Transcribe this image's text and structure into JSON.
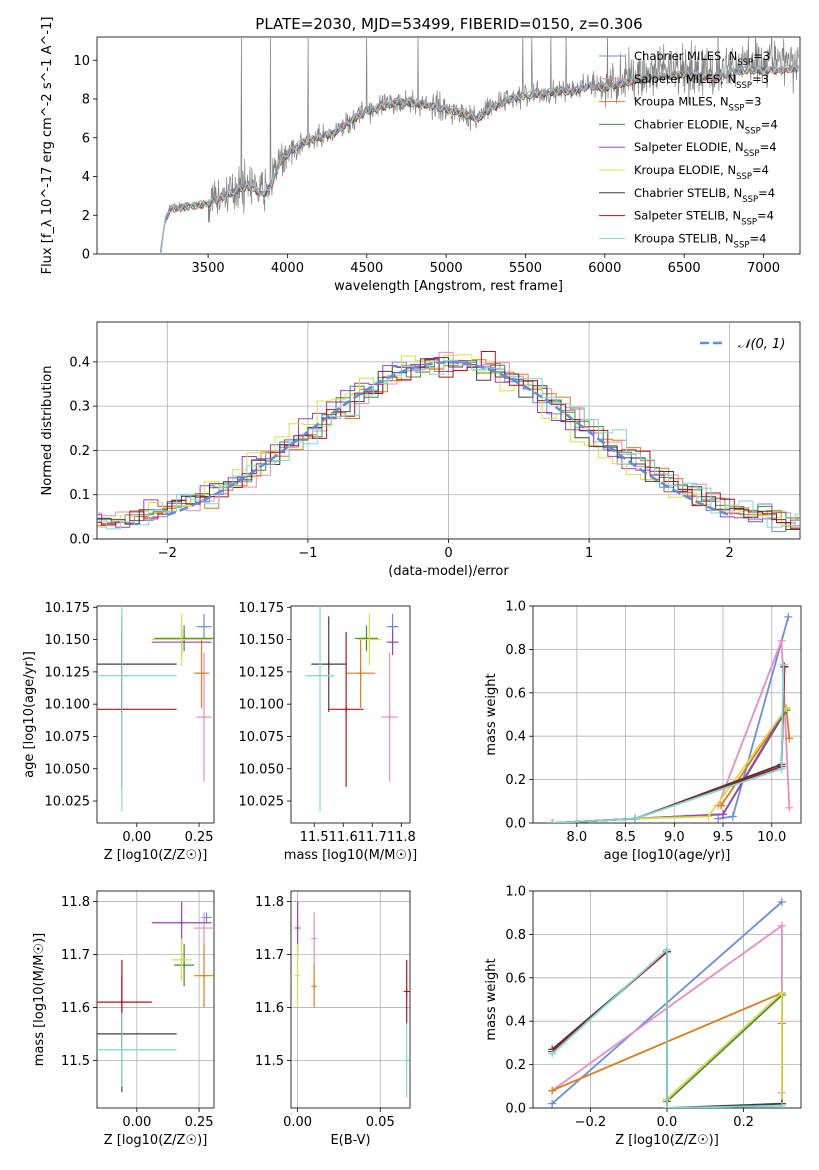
{
  "figure_title": "PLATE=2030, MJD=53499, FIBERID=0150, z=0.306",
  "colors": {
    "chabrier_miles": "#6b8fd8",
    "salpeter_miles": "#e88cc4",
    "kroupa_miles": "#e07b1a",
    "chabrier_elodie": "#3f8c3f",
    "salpeter_elodie": "#9a40c0",
    "kroupa_elodie": "#d8e040",
    "chabrier_stelib": "#404040",
    "salpeter_stelib": "#b01515",
    "kroupa_stelib": "#7ed8d8",
    "data": "#808080",
    "normal": "#5b8fd8"
  },
  "legend": [
    {
      "label": "Chabrier MILES, N",
      "sub": "SSP",
      "tail": "=3",
      "color": "chabrier_miles"
    },
    {
      "label": "Salpeter MILES, N",
      "sub": "SSP",
      "tail": "=3",
      "color": "salpeter_miles"
    },
    {
      "label": "Kroupa MILES, N",
      "sub": "SSP",
      "tail": "=3",
      "color": "kroupa_miles"
    },
    {
      "label": "Chabrier ELODIE, N",
      "sub": "SSP",
      "tail": "=4",
      "color": "chabrier_elodie"
    },
    {
      "label": "Salpeter ELODIE, N",
      "sub": "SSP",
      "tail": "=4",
      "color": "salpeter_elodie"
    },
    {
      "label": "Kroupa ELODIE, N",
      "sub": "SSP",
      "tail": "=4",
      "color": "kroupa_elodie"
    },
    {
      "label": "Chabrier STELIB, N",
      "sub": "SSP",
      "tail": "=4",
      "color": "chabrier_stelib"
    },
    {
      "label": "Salpeter STELIB, N",
      "sub": "SSP",
      "tail": "=4",
      "color": "salpeter_stelib"
    },
    {
      "label": "Kroupa STELIB, N",
      "sub": "SSP",
      "tail": "=4",
      "color": "kroupa_stelib"
    }
  ],
  "chart_data": [
    {
      "id": "spectrum",
      "type": "line",
      "xlabel": "wavelength [Angstrom, rest frame]",
      "ylabel": "Flux [f_λ 10^-17 erg cm^-2 s^-1 A^-1]",
      "xlim": [
        2800,
        7230
      ],
      "ylim": [
        0,
        11.2
      ],
      "xticks": [
        3500,
        4000,
        4500,
        5000,
        5500,
        6000,
        6500,
        7000
      ],
      "yticks": [
        0,
        2,
        4,
        6,
        8,
        10
      ],
      "legend_position": "right",
      "series": [
        {
          "color": "data",
          "x": [
            3200,
            3230,
            3260,
            3300,
            3400,
            3500,
            3550,
            3600,
            3650,
            3700,
            3750,
            3800,
            3850,
            3900,
            3950,
            4000,
            4100,
            4200,
            4300,
            4400,
            4500,
            4600,
            4700,
            4800,
            4900,
            5000,
            5100,
            5200,
            5300,
            5400,
            5500,
            5600,
            5700,
            5800,
            5900,
            6000,
            6100,
            6200,
            6300,
            6400,
            6500,
            6600,
            6700,
            6800,
            6900,
            7000,
            7100,
            7200
          ],
          "y": [
            0,
            1.7,
            2.3,
            2.4,
            2.5,
            2.6,
            2.8,
            3.1,
            3.3,
            3.5,
            3.6,
            3.4,
            3.2,
            3.7,
            4.8,
            5.2,
            5.7,
            5.9,
            6.3,
            6.9,
            7.4,
            7.6,
            7.9,
            7.8,
            7.7,
            7.5,
            7.3,
            7.0,
            7.7,
            8.0,
            8.2,
            8.3,
            8.4,
            8.4,
            8.7,
            8.6,
            8.9,
            9.2,
            9.3,
            9.4,
            9.6,
            9.5,
            9.3,
            9.7,
            9.8,
            9.9,
            9.9,
            10.0
          ]
        },
        {
          "color": "kroupa_stelib",
          "x": [
            3200,
            3230,
            3260,
            3300,
            3400,
            3500,
            3550,
            3600,
            3650,
            3700,
            3750,
            3800,
            3850,
            3900,
            3950,
            4000,
            4100,
            4200,
            4300,
            4400,
            4500,
            4600,
            4700,
            4800,
            4900,
            5000,
            5100,
            5200,
            5300,
            5400,
            5500,
            5600,
            5700,
            5800,
            5900,
            6000,
            6100,
            6200,
            6300,
            6400,
            6500,
            6600,
            6700,
            6800,
            6900,
            7000,
            7100,
            7200
          ],
          "y": [
            0,
            1.8,
            2.3,
            2.4,
            2.5,
            2.6,
            2.8,
            3.0,
            3.2,
            3.4,
            3.5,
            3.3,
            3.1,
            3.6,
            4.7,
            5.2,
            5.8,
            6.0,
            6.3,
            6.9,
            7.4,
            7.6,
            7.9,
            7.8,
            7.7,
            7.5,
            7.3,
            7.0,
            7.6,
            8.0,
            8.2,
            8.3,
            8.4,
            8.4,
            8.7,
            8.6,
            8.8,
            9.0,
            9.1,
            9.2,
            9.3,
            9.2,
            9.1,
            9.4,
            9.5,
            9.5,
            9.5,
            9.6
          ]
        }
      ]
    },
    {
      "id": "residuals",
      "type": "line",
      "xlabel": "(data-model)/error",
      "ylabel": "Normed distribution",
      "xlim": [
        -2.5,
        2.5
      ],
      "ylim": [
        0,
        0.49
      ],
      "xticks": [
        -2,
        -1,
        0,
        1,
        2
      ],
      "yticks": [
        0.0,
        0.1,
        0.2,
        0.3,
        0.4
      ],
      "legend": "𝒩(0, 1)",
      "legend_position": "top-right",
      "normal_curve": {
        "mean": 0,
        "sigma": 1
      }
    },
    {
      "id": "age_vs_Z",
      "type": "scatter",
      "xlabel": "Z [log10(Z/Z☉)]",
      "ylabel": "age [log10(age/yr)]",
      "xlim": [
        -0.16,
        0.31
      ],
      "ylim": [
        10.008,
        10.176
      ],
      "xticks": [
        0.0,
        0.25
      ],
      "yticks": [
        10.025,
        10.05,
        10.075,
        10.1,
        10.125,
        10.15,
        10.175
      ],
      "points": [
        {
          "color": "chabrier_miles",
          "x": 0.27,
          "y": 10.16,
          "xerr": 0.03,
          "yerr": 0.01
        },
        {
          "color": "salpeter_miles",
          "x": 0.27,
          "y": 10.09,
          "xerr": 0.03,
          "yerr": 0.05
        },
        {
          "color": "kroupa_miles",
          "x": 0.26,
          "y": 10.124,
          "xerr": 0.03,
          "yerr": 0.027
        },
        {
          "color": "chabrier_elodie",
          "x": 0.19,
          "y": 10.151,
          "xerr": 0.12,
          "yerr": 0.01
        },
        {
          "color": "salpeter_elodie",
          "x": 0.18,
          "y": 10.148,
          "xerr": 0.12,
          "yerr": 0.01
        },
        {
          "color": "kroupa_elodie",
          "x": 0.18,
          "y": 10.15,
          "xerr": 0.12,
          "yerr": 0.02
        },
        {
          "color": "chabrier_stelib",
          "x": -0.06,
          "y": 10.131,
          "xerr": 0.22,
          "yerr": 0.037
        },
        {
          "color": "salpeter_stelib",
          "x": -0.06,
          "y": 10.096,
          "xerr": 0.22,
          "yerr": 0.06
        },
        {
          "color": "kroupa_stelib",
          "x": -0.06,
          "y": 10.122,
          "xerr": 0.22,
          "yerr": 0.105
        }
      ]
    },
    {
      "id": "age_vs_mass",
      "type": "scatter",
      "xlabel": "mass [log10(M/M☉)]",
      "ylabel": "",
      "xlim": [
        11.42,
        11.83
      ],
      "ylim": [
        10.008,
        10.176
      ],
      "xticks": [
        11.5,
        11.6,
        11.7,
        11.8
      ],
      "yticks": [
        10.025,
        10.05,
        10.075,
        10.1,
        10.125,
        10.15,
        10.175
      ],
      "points": [
        {
          "color": "chabrier_miles",
          "x": 11.77,
          "y": 10.16,
          "xerr": 0.02,
          "yerr": 0.01
        },
        {
          "color": "salpeter_miles",
          "x": 11.76,
          "y": 10.09,
          "xerr": 0.03,
          "yerr": 0.05
        },
        {
          "color": "kroupa_miles",
          "x": 11.66,
          "y": 10.124,
          "xerr": 0.05,
          "yerr": 0.027
        },
        {
          "color": "chabrier_elodie",
          "x": 11.68,
          "y": 10.151,
          "xerr": 0.04,
          "yerr": 0.01
        },
        {
          "color": "salpeter_elodie",
          "x": 11.77,
          "y": 10.148,
          "xerr": 0.02,
          "yerr": 0.01
        },
        {
          "color": "kroupa_elodie",
          "x": 11.69,
          "y": 10.15,
          "xerr": 0.04,
          "yerr": 0.02
        },
        {
          "color": "chabrier_stelib",
          "x": 11.55,
          "y": 10.131,
          "xerr": 0.06,
          "yerr": 0.037
        },
        {
          "color": "salpeter_stelib",
          "x": 11.61,
          "y": 10.096,
          "xerr": 0.06,
          "yerr": 0.06
        },
        {
          "color": "kroupa_stelib",
          "x": 11.52,
          "y": 10.122,
          "xerr": 0.05,
          "yerr": 0.105
        }
      ]
    },
    {
      "id": "weight_vs_age",
      "type": "line",
      "xlabel": "age [log10(age/yr)]",
      "ylabel": "mass weight",
      "xlim": [
        7.55,
        10.3
      ],
      "ylim": [
        0,
        1.0
      ],
      "xticks": [
        8.0,
        8.5,
        9.0,
        9.5,
        10.0
      ],
      "yticks": [
        0.0,
        0.2,
        0.4,
        0.6,
        0.8,
        1.0
      ],
      "series": [
        {
          "color": "chabrier_miles",
          "x": [
            9.45,
            9.6,
            10.17
          ],
          "y": [
            0.02,
            0.03,
            0.95
          ]
        },
        {
          "color": "salpeter_miles",
          "x": [
            9.45,
            10.1,
            10.18
          ],
          "y": [
            0.08,
            0.84,
            0.07
          ]
        },
        {
          "color": "kroupa_miles",
          "x": [
            9.48,
            10.15,
            10.18
          ],
          "y": [
            0.08,
            0.53,
            0.39
          ]
        },
        {
          "color": "chabrier_elodie",
          "x": [
            7.75,
            8.6,
            9.5,
            10.15
          ],
          "y": [
            0.0,
            0.02,
            0.04,
            0.52
          ]
        },
        {
          "color": "salpeter_elodie",
          "x": [
            7.75,
            8.6,
            9.5,
            10.15
          ],
          "y": [
            0.0,
            0.02,
            0.04,
            0.53
          ]
        },
        {
          "color": "kroupa_elodie",
          "x": [
            7.75,
            8.6,
            9.35,
            10.15
          ],
          "y": [
            0.0,
            0.02,
            0.03,
            0.53
          ]
        },
        {
          "color": "chabrier_stelib",
          "x": [
            7.75,
            8.6,
            10.1,
            10.13
          ],
          "y": [
            0.0,
            0.02,
            0.27,
            0.72
          ]
        },
        {
          "color": "salpeter_stelib",
          "x": [
            7.75,
            8.6,
            10.1,
            10.13
          ],
          "y": [
            0.0,
            0.02,
            0.26,
            0.72
          ]
        },
        {
          "color": "kroupa_stelib",
          "x": [
            7.75,
            8.6,
            10.1,
            10.12
          ],
          "y": [
            0.0,
            0.02,
            0.25,
            0.73
          ]
        }
      ]
    },
    {
      "id": "mass_vs_Z",
      "type": "scatter",
      "xlabel": "Z [log10(Z/Z☉)]",
      "ylabel": "mass [log10(M/M☉)]",
      "xlim": [
        -0.16,
        0.31
      ],
      "ylim": [
        11.41,
        11.82
      ],
      "xticks": [
        0.0,
        0.25
      ],
      "yticks": [
        11.5,
        11.6,
        11.7,
        11.8
      ],
      "points": [
        {
          "color": "chabrier_miles",
          "x": 0.28,
          "y": 11.77,
          "xerr": 0.02,
          "yerr": 0.01
        },
        {
          "color": "salpeter_miles",
          "x": 0.27,
          "y": 11.75,
          "xerr": 0.04,
          "yerr": 0.03
        },
        {
          "color": "kroupa_miles",
          "x": 0.27,
          "y": 11.66,
          "xerr": 0.04,
          "yerr": 0.06
        },
        {
          "color": "chabrier_elodie",
          "x": 0.19,
          "y": 11.68,
          "xerr": 0.04,
          "yerr": 0.04
        },
        {
          "color": "salpeter_elodie",
          "x": 0.18,
          "y": 11.76,
          "xerr": 0.12,
          "yerr": 0.04
        },
        {
          "color": "kroupa_elodie",
          "x": 0.18,
          "y": 11.69,
          "xerr": 0.04,
          "yerr": 0.04
        },
        {
          "color": "chabrier_stelib",
          "x": -0.06,
          "y": 11.55,
          "xerr": 0.22,
          "yerr": 0.11
        },
        {
          "color": "salpeter_stelib",
          "x": -0.06,
          "y": 11.61,
          "xerr": 0.12,
          "yerr": 0.08
        },
        {
          "color": "kroupa_stelib",
          "x": -0.06,
          "y": 11.52,
          "xerr": 0.22,
          "yerr": 0.07
        }
      ]
    },
    {
      "id": "mass_vs_ebv",
      "type": "scatter",
      "xlabel": "E(B-V)",
      "ylabel": "",
      "xlim": [
        -0.004,
        0.068
      ],
      "ylim": [
        11.41,
        11.82
      ],
      "xticks": [
        0.0,
        0.05
      ],
      "yticks": [
        11.5,
        11.6,
        11.7,
        11.8
      ],
      "points": [
        {
          "color": "salpeter_elodie",
          "x": 0.0,
          "y": 11.75,
          "xerr": 0,
          "yerr": 0.05
        },
        {
          "color": "kroupa_elodie",
          "x": 0.0,
          "y": 11.66,
          "xerr": 0,
          "yerr": 0.06
        },
        {
          "color": "salpeter_miles",
          "x": 0.01,
          "y": 11.73,
          "xerr": 0,
          "yerr": 0.05
        },
        {
          "color": "kroupa_miles",
          "x": 0.01,
          "y": 11.64,
          "xerr": 0,
          "yerr": 0.04
        },
        {
          "color": "salpeter_stelib",
          "x": 0.066,
          "y": 11.63,
          "xerr": 0,
          "yerr": 0.06
        },
        {
          "color": "kroupa_stelib",
          "x": 0.066,
          "y": 11.5,
          "xerr": 0,
          "yerr": 0.07
        }
      ]
    },
    {
      "id": "weight_vs_Z",
      "type": "line",
      "xlabel": "Z [log10(Z/Z☉)]",
      "ylabel": "mass weight",
      "xlim": [
        -0.35,
        0.35
      ],
      "ylim": [
        0,
        1.0
      ],
      "xticks": [
        -0.2,
        0.0,
        0.2
      ],
      "yticks": [
        0.0,
        0.2,
        0.4,
        0.6,
        0.8,
        1.0
      ],
      "series": [
        {
          "color": "chabrier_miles",
          "x": [
            -0.3,
            0.3
          ],
          "y": [
            0.02,
            0.95
          ]
        },
        {
          "color": "salpeter_miles",
          "x": [
            -0.3,
            0.3,
            0.3
          ],
          "y": [
            0.08,
            0.84,
            0.07
          ]
        },
        {
          "color": "kroupa_miles",
          "x": [
            -0.3,
            0.3,
            0.3
          ],
          "y": [
            0.08,
            0.53,
            0.39
          ]
        },
        {
          "color": "chabrier_elodie",
          "x": [
            0.0,
            0.3,
            0.3
          ],
          "y": [
            0.03,
            0.52,
            0.02
          ]
        },
        {
          "color": "salpeter_elodie",
          "x": [
            0.0,
            0.3,
            0.3
          ],
          "y": [
            0.04,
            0.53,
            0.02
          ]
        },
        {
          "color": "kroupa_elodie",
          "x": [
            0.0,
            0.3,
            0.3
          ],
          "y": [
            0.04,
            0.53,
            0.02
          ]
        },
        {
          "color": "chabrier_stelib",
          "x": [
            -0.3,
            0.0,
            0.0,
            0.3
          ],
          "y": [
            0.27,
            0.72,
            0.0,
            0.02
          ]
        },
        {
          "color": "salpeter_stelib",
          "x": [
            -0.3,
            0.0,
            0.0
          ],
          "y": [
            0.26,
            0.72,
            0.0
          ]
        },
        {
          "color": "kroupa_stelib",
          "x": [
            -0.3,
            0.0,
            0.0,
            0.3
          ],
          "y": [
            0.25,
            0.73,
            0.0,
            0.01
          ]
        }
      ]
    }
  ]
}
